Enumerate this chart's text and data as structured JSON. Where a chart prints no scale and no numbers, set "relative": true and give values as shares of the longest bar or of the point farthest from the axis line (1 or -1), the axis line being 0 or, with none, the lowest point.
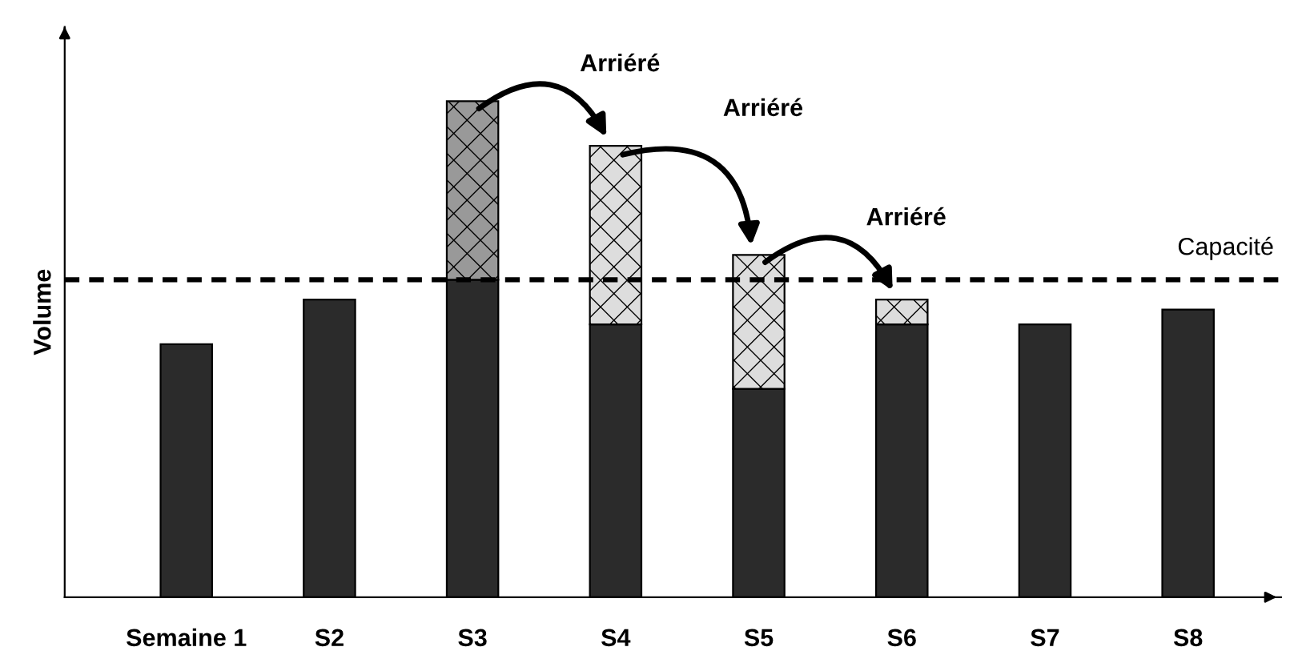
{
  "chart_data": {
    "type": "bar",
    "stacked": true,
    "relative": true,
    "ylabel": "Volume",
    "categories": [
      "Semaine 1",
      "S2",
      "S3",
      "S4",
      "S5",
      "S6",
      "S7",
      "S8"
    ],
    "series": [
      {
        "color": "#2b2b2b",
        "values": [
          0.51,
          0.6,
          0.64,
          0.55,
          0.42,
          0.55,
          0.55,
          0.58
        ]
      },
      {
        "color": "#dddddd",
        "colors": [
          "#dddddd",
          "#dddddd",
          "#999999",
          "#dddddd",
          "#dddddd",
          "#dddddd",
          "#dddddd",
          "#dddddd"
        ],
        "values": [
          null,
          null,
          0.36,
          0.36,
          0.27,
          0.05,
          null,
          null
        ]
      }
    ],
    "ref_lines": [
      {
        "axis": "y",
        "value": 0.64,
        "label": "Capacité",
        "color": "#000000",
        "line_style": "dashed"
      }
    ],
    "annotations": [
      "Arriéré",
      "Arriéré",
      "Arriéré"
    ]
  }
}
